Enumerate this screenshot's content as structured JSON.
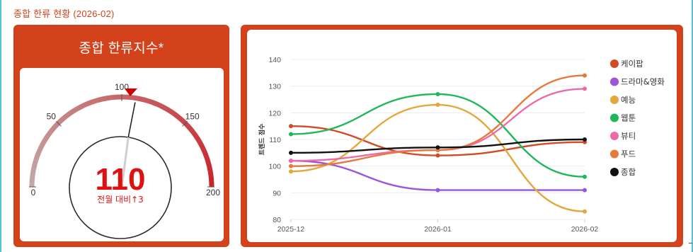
{
  "page": {
    "title": "종합 한류 현황 (2026-02)"
  },
  "gauge": {
    "title": "종합 한류지수*",
    "value": 110,
    "value_label": "110",
    "min": 0,
    "max": 200,
    "ticks": [
      "0",
      "50",
      "100",
      "150",
      "200"
    ],
    "tick_values": [
      0,
      50,
      100,
      150,
      200
    ],
    "marker_value": 100,
    "change_label": "전월 대비↑3",
    "colors": {
      "arc_low": "#c4a7a7",
      "arc_high": "#c8262a",
      "value": "#e01010",
      "marker": "#d00000"
    }
  },
  "chart_data": {
    "type": "line",
    "categories": [
      "2025-12",
      "2026-01",
      "2026-02"
    ],
    "ylabel": "트렌드 점수",
    "ylim": [
      80,
      140
    ],
    "yticks": [
      80,
      90,
      100,
      110,
      120,
      130,
      140
    ],
    "grid": true,
    "legend_position": "right",
    "series": [
      {
        "name": "케이팝",
        "color": "#d24a26",
        "values": [
          115,
          104,
          109
        ]
      },
      {
        "name": "드라마&영화",
        "color": "#9b55d6",
        "values": [
          102,
          91,
          91
        ]
      },
      {
        "name": "예능",
        "color": "#e3a73c",
        "values": [
          98,
          123,
          83
        ]
      },
      {
        "name": "웹툰",
        "color": "#22b65a",
        "values": [
          112,
          127,
          96
        ]
      },
      {
        "name": "뷰티",
        "color": "#ec6aa8",
        "values": [
          102,
          106,
          129
        ]
      },
      {
        "name": "푸드",
        "color": "#e57a3c",
        "values": [
          100,
          106,
          134
        ]
      },
      {
        "name": "종합",
        "color": "#111111",
        "values": [
          105,
          107,
          110
        ]
      }
    ]
  }
}
